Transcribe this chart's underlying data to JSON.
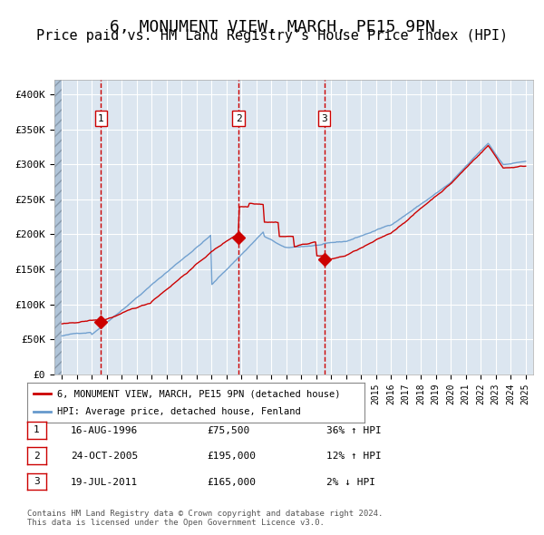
{
  "title": "6, MONUMENT VIEW, MARCH, PE15 9PN",
  "subtitle": "Price paid vs. HM Land Registry's House Price Index (HPI)",
  "title_fontsize": 13,
  "subtitle_fontsize": 11,
  "background_color": "#dce6f0",
  "plot_bg_color": "#dce6f0",
  "hatch_color": "#b0c4d8",
  "red_line_color": "#cc0000",
  "blue_line_color": "#6699cc",
  "sale_marker_color": "#cc0000",
  "dashed_line_color": "#cc0000",
  "ylim": [
    0,
    420000
  ],
  "yticks": [
    0,
    50000,
    100000,
    150000,
    200000,
    250000,
    300000,
    350000,
    400000
  ],
  "ytick_labels": [
    "£0",
    "£50K",
    "£100K",
    "£150K",
    "£200K",
    "£250K",
    "£300K",
    "£350K",
    "£400K"
  ],
  "sales": [
    {
      "date_num": 1996.62,
      "price": 75500,
      "label": "1"
    },
    {
      "date_num": 2005.81,
      "price": 195000,
      "label": "2"
    },
    {
      "date_num": 2011.54,
      "price": 165000,
      "label": "3"
    }
  ],
  "legend_line1": "6, MONUMENT VIEW, MARCH, PE15 9PN (detached house)",
  "legend_line2": "HPI: Average price, detached house, Fenland",
  "table": [
    {
      "num": "1",
      "date": "16-AUG-1996",
      "price": "£75,500",
      "hpi": "36% ↑ HPI"
    },
    {
      "num": "2",
      "date": "24-OCT-2005",
      "price": "£195,000",
      "hpi": "12% ↑ HPI"
    },
    {
      "num": "3",
      "date": "19-JUL-2011",
      "price": "£165,000",
      "hpi": "2% ↓ HPI"
    }
  ],
  "footnote": "Contains HM Land Registry data © Crown copyright and database right 2024.\nThis data is licensed under the Open Government Licence v3.0.",
  "xmin": 1993.5,
  "xmax": 2025.5
}
